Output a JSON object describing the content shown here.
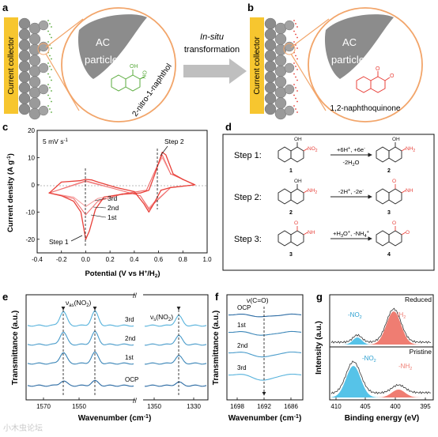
{
  "panel_a": {
    "letter": "a",
    "collector": "Current collector",
    "particle_line1": "AC",
    "particle_line2": "particle",
    "molecule": "2-nitro-1-naphthol",
    "oh": "OH",
    "no2": "NO",
    "no2_sub": "2"
  },
  "arrow": {
    "line1": "In-situ",
    "line2": "transformation"
  },
  "panel_b": {
    "letter": "b",
    "collector": "Current collector",
    "particle_line1": "AC",
    "particle_line2": "particle",
    "molecule": "1,2-naphthoquinone",
    "o1": "O",
    "o2": "O"
  },
  "panel_c": {
    "letter": "c",
    "rate": "5 mV s",
    "rate_sup": "-1",
    "ylabel": "Current density (A g",
    "ylabel_sup": "-1",
    "ylabel_end": ")",
    "xlabel": "Potential (V vs H",
    "xlabel_sup": "+",
    "xlabel_end": "/H",
    "xlabel_sub": "2",
    "xlabel_close": ")",
    "step1": "Step 1",
    "step2": "Step 2",
    "cycles": [
      "3rd",
      "2nd",
      "1st"
    ]
  },
  "chart_data": [
    {
      "type": "line",
      "panel": "c",
      "xlim": [
        -0.4,
        1.0
      ],
      "ylim": [
        -25,
        20
      ],
      "xticks": [
        "-0.4",
        "-0.2",
        "0.0",
        "0.2",
        "0.4",
        "0.6",
        "0.8",
        "1.0"
      ],
      "yticks": [
        "20",
        "10",
        "0",
        "-10",
        "-20"
      ],
      "series": [
        {
          "name": "1st",
          "color": "#e8413a",
          "x": [
            -0.3,
            -0.2,
            -0.1,
            -0.04,
            0.0,
            0.03,
            0.08,
            0.15,
            0.3,
            0.45,
            0.52,
            0.57,
            0.6,
            0.63,
            0.66,
            0.72,
            0.8,
            0.9,
            0.8,
            0.7,
            0.62,
            0.56,
            0.52,
            0.48,
            0.4,
            0.25,
            0.1,
            0.05,
            0.0,
            -0.05,
            -0.2,
            -0.3
          ],
          "y": [
            -3,
            -4,
            -6,
            -10,
            -20,
            -17,
            -9,
            -4.5,
            -3.5,
            -3,
            -2,
            4,
            8,
            12,
            11,
            4,
            2,
            0,
            -0.5,
            -1,
            -2,
            -7,
            -10,
            -7,
            -2.5,
            -1,
            1,
            1.8,
            2,
            1.5,
            1,
            -3
          ]
        },
        {
          "name": "2nd",
          "color": "#f06a6a",
          "x": [
            -0.3,
            -0.1,
            0.0,
            0.1,
            0.3,
            0.5,
            0.58,
            0.63,
            0.7,
            0.9,
            0.7,
            0.56,
            0.52,
            0.45,
            0.2,
            0.0,
            -0.3
          ],
          "y": [
            -3,
            -5,
            -11,
            -6,
            -3.4,
            -2,
            6,
            11,
            4,
            0,
            -1,
            -7,
            -9,
            -4,
            -1,
            1.5,
            -3
          ]
        },
        {
          "name": "3rd",
          "color": "#f59a9a",
          "x": [
            -0.3,
            -0.1,
            0.0,
            0.1,
            0.3,
            0.5,
            0.58,
            0.63,
            0.7,
            0.9,
            0.7,
            0.56,
            0.52,
            0.45,
            0.2,
            0.0,
            -0.3
          ],
          "y": [
            -3,
            -4.5,
            -8,
            -5,
            -3.3,
            -2,
            6,
            10,
            4,
            0,
            -1,
            -6.5,
            -8.5,
            -4,
            -1,
            1.2,
            -3
          ]
        }
      ]
    },
    {
      "type": "line",
      "panel": "e",
      "xticks": [
        "1570",
        "1550",
        "1350",
        "1330"
      ],
      "series": [
        {
          "name": "OCP"
        },
        {
          "name": "1st"
        },
        {
          "name": "2nd"
        },
        {
          "name": "3rd"
        }
      ]
    },
    {
      "type": "line",
      "panel": "f",
      "xticks": [
        "1698",
        "1692",
        "1686"
      ],
      "series": [
        {
          "name": "OCP"
        },
        {
          "name": "1st"
        },
        {
          "name": "2nd"
        },
        {
          "name": "3rd"
        }
      ]
    },
    {
      "type": "area",
      "panel": "g",
      "xticks": [
        "410",
        "405",
        "400",
        "395"
      ],
      "series": [
        {
          "name": "Reduced"
        },
        {
          "name": "Pristine"
        }
      ]
    }
  ],
  "panel_d": {
    "letter": "d",
    "steps": [
      {
        "label": "Step 1:",
        "above": "+6H",
        "above_sup1": "+",
        "above_mid": ", +6e",
        "above_sup2": "-",
        "below": "-2H",
        "below_sub": "2",
        "below_end": "O",
        "n_left": "1",
        "n_right": "2"
      },
      {
        "label": "Step 2:",
        "above": "-2H",
        "above_sup1": "+",
        "above_mid": ", -2e",
        "above_sup2": "-",
        "below": "",
        "n_left": "2",
        "n_right": "3"
      },
      {
        "label": "Step 3:",
        "above": "+H",
        "above_sub": "3",
        "above_mid": "O",
        "above_sup1": "+",
        "above_end": ", -NH",
        "above_sub2": "4",
        "above_sup2": "+",
        "below": "",
        "n_left": "3",
        "n_right": "4"
      }
    ],
    "groups": {
      "oh": "OH",
      "no2": "NO",
      "no2_sub": "2",
      "nh2": "NH",
      "nh2_sub": "2",
      "nh": "NH",
      "o": "O"
    }
  },
  "panel_e": {
    "letter": "e",
    "ylabel": "Transmittance (a.u.)",
    "xlabel": "Wavenumber (cm",
    "xlabel_sup": "-1",
    "xlabel_end": ")",
    "ann_as": "ν",
    "ann_as_sub": "as",
    "ann_as_rest": "(NO",
    "ann_as_sub2": "2",
    "ann_as_end": ")",
    "ann_s": "ν",
    "ann_s_sub": "s",
    "ann_s_rest": "(NO",
    "ann_s_sub2": "2",
    "ann_s_end": ")",
    "labels": [
      "3rd",
      "2nd",
      "1st",
      "OCP"
    ]
  },
  "panel_f": {
    "letter": "f",
    "ylabel": "Transmittance (a.u.)",
    "xlabel": "Wavenumber (cm",
    "xlabel_sup": "-1",
    "xlabel_end": ")",
    "ann": "ν(C=O)",
    "labels": [
      "OCP",
      "1st",
      "2nd",
      "3rd"
    ]
  },
  "panel_g": {
    "letter": "g",
    "ylabel": "Intensity (a.u.)",
    "xlabel": "Binding energy (eV)",
    "reduced": "Reduced",
    "pristine": "Pristine",
    "no2": "-NO",
    "no2_sub": "2",
    "nh2": "-NH",
    "nh2_sub": "2"
  },
  "watermark": "小木虫论坛",
  "colors": {
    "collector": "#f7c62f",
    "particle": "#8c8c8c",
    "orange": "#f2a56a",
    "green": "#5aab3d",
    "red": "#e8413a",
    "blue": "#2a6aa3",
    "lightblue": "#56c3e8",
    "salmon": "#ef7d72"
  }
}
